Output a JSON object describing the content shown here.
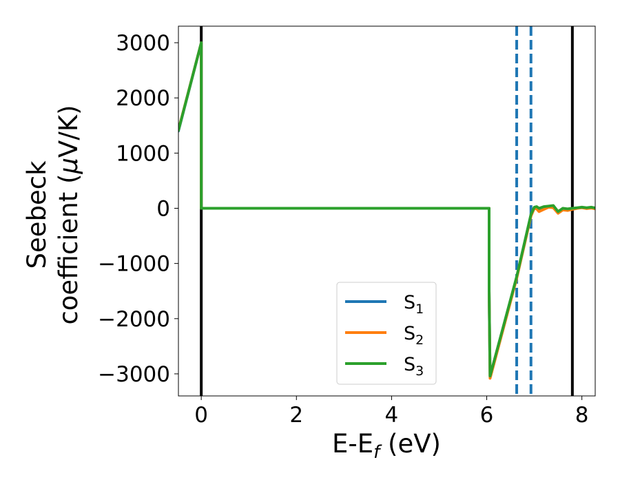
{
  "chart_data": {
    "type": "line",
    "xlabel": {
      "main": "E-E",
      "sub": "f",
      "unit": " (eV)"
    },
    "ylabel": {
      "line1": "Seebeck",
      "line2_text": "coefficient  (",
      "line2_mu": "μ",
      "line2_unit": "V/K)"
    },
    "xlim": [
      -0.48,
      8.28
    ],
    "ylim": [
      -3400,
      3300
    ],
    "xticks": [
      0,
      2,
      4,
      6,
      8
    ],
    "xtick_labels": [
      "0",
      "2",
      "4",
      "6",
      "8"
    ],
    "yticks": [
      -3000,
      -2000,
      -1000,
      0,
      1000,
      2000,
      3000
    ],
    "ytick_labels": [
      "−3000",
      "−2000",
      "−1000",
      "0",
      "1000",
      "2000",
      "3000"
    ],
    "vlines_solid": [
      0.0,
      7.8
    ],
    "vlines_dashed": [
      6.63,
      6.93
    ],
    "legend_position": "lower-center",
    "series": [
      {
        "name": "S1",
        "label_main": "S",
        "label_sub": "1",
        "color": "#1f77b4",
        "x": [
          -0.48,
          0.0,
          0.0,
          6.05,
          6.05,
          6.07,
          6.63,
          6.93,
          7.0,
          7.05,
          7.1,
          7.2,
          7.3,
          7.4,
          7.5,
          7.6,
          7.7,
          7.8,
          7.9,
          8.0,
          8.1,
          8.2,
          8.28
        ],
        "y": [
          1400,
          3000,
          0,
          0,
          -1500,
          -3050,
          -1250,
          -120,
          10,
          10,
          -20,
          10,
          20,
          30,
          -60,
          -10,
          -20,
          -10,
          5,
          15,
          5,
          10,
          0
        ]
      },
      {
        "name": "S2",
        "label_main": "S",
        "label_sub": "2",
        "color": "#ff7f0e",
        "x": [
          -0.48,
          0.0,
          0.0,
          6.05,
          6.05,
          6.07,
          6.63,
          6.93,
          7.0,
          7.05,
          7.1,
          7.2,
          7.3,
          7.4,
          7.5,
          7.6,
          7.7,
          7.8,
          7.9,
          8.0,
          8.1,
          8.2,
          8.28
        ],
        "y": [
          1420,
          3000,
          0,
          0,
          -1500,
          -3080,
          -1270,
          -140,
          0,
          -10,
          -60,
          -20,
          20,
          10,
          -90,
          -30,
          -40,
          -20,
          0,
          10,
          -5,
          5,
          -10
        ]
      },
      {
        "name": "S3",
        "label_main": "S",
        "label_sub": "3",
        "color": "#2ca02c",
        "x": [
          -0.48,
          0.0,
          0.0,
          6.05,
          6.05,
          6.07,
          6.63,
          6.93,
          7.0,
          7.05,
          7.1,
          7.2,
          7.3,
          7.4,
          7.5,
          7.6,
          7.7,
          7.8,
          7.9,
          8.0,
          8.1,
          8.2,
          8.28
        ],
        "y": [
          1410,
          3000,
          0,
          0,
          -1500,
          -3040,
          -1240,
          -110,
          20,
          30,
          0,
          30,
          40,
          50,
          -60,
          0,
          -10,
          0,
          10,
          20,
          10,
          20,
          5
        ]
      }
    ]
  }
}
